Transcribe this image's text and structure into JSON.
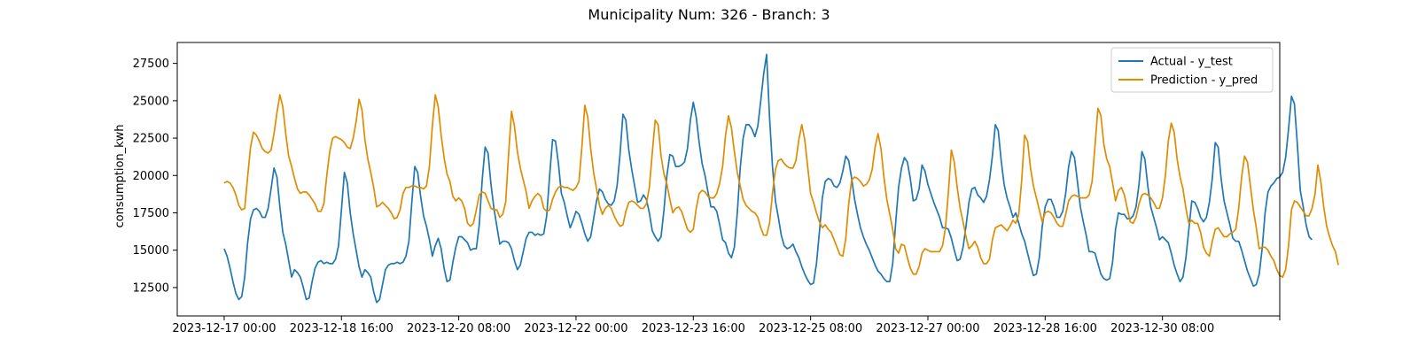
{
  "chart_data": {
    "type": "line",
    "title": "Municipality Num: 326 - Branch: 3",
    "xlabel": "",
    "ylabel": "consumption_kwh",
    "x_start": "2023-12-17 00:00",
    "x_step_hours": 1,
    "xlim_hours": [
      -16,
      360
    ],
    "ylim": [
      10600,
      28900
    ],
    "grid": false,
    "legend_position": "top-right",
    "x_ticks": [
      {
        "label": "2023-12-17 00:00",
        "hours": 0
      },
      {
        "label": "2023-12-18 16:00",
        "hours": 40
      },
      {
        "label": "2023-12-20 08:00",
        "hours": 80
      },
      {
        "label": "2023-12-22 00:00",
        "hours": 120
      },
      {
        "label": "2023-12-23 16:00",
        "hours": 160
      },
      {
        "label": "2023-12-25 08:00",
        "hours": 200
      },
      {
        "label": "2023-12-27 00:00",
        "hours": 240
      },
      {
        "label": "2023-12-28 16:00",
        "hours": 280
      },
      {
        "label": "2023-12-30 08:00",
        "hours": 320
      },
      {
        "label": "",
        "hours": 360
      }
    ],
    "y_ticks": [
      12500,
      15000,
      17500,
      20000,
      22500,
      25000,
      27500
    ],
    "series": [
      {
        "name": "Actual - y_test",
        "color": "#1f77b4",
        "values": [
          15100,
          14600,
          13800,
          12900,
          12100,
          11700,
          11900,
          13200,
          15500,
          17100,
          17700,
          17800,
          17600,
          17200,
          17200,
          17800,
          19100,
          20500,
          19900,
          17900,
          16200,
          15400,
          14300,
          13200,
          13700,
          13500,
          13200,
          12500,
          11700,
          11800,
          12900,
          13800,
          14200,
          14300,
          14100,
          14200,
          14100,
          14100,
          14400,
          15300,
          17700,
          20200,
          19500,
          17500,
          16100,
          15000,
          13900,
          13200,
          13700,
          13500,
          13200,
          12200,
          11500,
          11700,
          12700,
          13700,
          14000,
          14100,
          14100,
          14200,
          14100,
          14200,
          14600,
          15600,
          18200,
          20600,
          20200,
          18600,
          17300,
          16600,
          15700,
          14600,
          15300,
          15800,
          15100,
          13800,
          12900,
          13000,
          14200,
          15200,
          15900,
          15900,
          15700,
          15500,
          15000,
          15100,
          15100,
          16700,
          19700,
          21900,
          21500,
          19400,
          17800,
          16600,
          15400,
          15600,
          15600,
          15500,
          15100,
          14300,
          13700,
          14000,
          14900,
          15800,
          16200,
          16200,
          16000,
          16100,
          16000,
          16100,
          17300,
          20000,
          22400,
          22300,
          20800,
          18800,
          18200,
          17300,
          16500,
          17000,
          17600,
          17400,
          16800,
          16100,
          15600,
          15900,
          17100,
          18300,
          19100,
          18900,
          18400,
          18100,
          18000,
          18300,
          19300,
          21400,
          24100,
          23700,
          21700,
          20400,
          19300,
          18200,
          18300,
          18700,
          18400,
          17500,
          16300,
          15900,
          15600,
          15900,
          17700,
          20000,
          21400,
          21300,
          20600,
          20600,
          20700,
          20900,
          21800,
          23700,
          24900,
          23900,
          22200,
          20800,
          20000,
          18900,
          17900,
          17900,
          17600,
          16700,
          15700,
          15500,
          14800,
          14500,
          15200,
          17500,
          20500,
          22500,
          23400,
          23400,
          23100,
          22600,
          23300,
          25000,
          26800,
          28100,
          23900,
          20600,
          18300,
          17200,
          16000,
          15300,
          15100,
          15200,
          15400,
          14900,
          14500,
          13900,
          13400,
          13000,
          12700,
          12800,
          14100,
          16200,
          18500,
          19600,
          19800,
          19700,
          19300,
          19200,
          19500,
          20300,
          21300,
          21000,
          19800,
          18400,
          17400,
          16500,
          15900,
          15400,
          15000,
          14500,
          14000,
          13600,
          13400,
          13100,
          12900,
          12900,
          14100,
          16800,
          19200,
          20500,
          21200,
          20900,
          19800,
          18300,
          18400,
          19100,
          20700,
          20300,
          19400,
          18800,
          18200,
          17700,
          17200,
          16500,
          16500,
          16400,
          15800,
          15000,
          14300,
          14400,
          15200,
          16600,
          18200,
          19100,
          19200,
          18700,
          18500,
          18200,
          18600,
          19700,
          21300,
          23400,
          23000,
          21000,
          19400,
          18500,
          17900,
          17200,
          17500,
          16800,
          16100,
          15600,
          14800,
          14000,
          13300,
          13400,
          14500,
          16600,
          17900,
          18400,
          18400,
          17900,
          17200,
          17200,
          17600,
          18800,
          20600,
          21600,
          21200,
          19600,
          17900,
          16900,
          16000,
          14900,
          14900,
          14800,
          14100,
          13400,
          13100,
          13000,
          13100,
          14200,
          16400,
          17500,
          17400,
          17400,
          17100,
          17100,
          17300,
          17900,
          19400,
          21600,
          21100,
          19300,
          17900,
          17200,
          16500,
          15700,
          15900,
          15700,
          15500,
          14800,
          14000,
          13400,
          12900,
          13200,
          14500,
          16400,
          18300,
          18200,
          17800,
          17200,
          16900,
          17200,
          18200,
          19800,
          22200,
          21900,
          19800,
          18300,
          17500,
          16700,
          15800,
          15600,
          15600,
          15000,
          14300,
          13600,
          13100,
          12600,
          12700,
          13400,
          15100,
          17500,
          18900,
          19300,
          19500,
          19800,
          19900,
          20200,
          21200,
          23100,
          25300,
          24800,
          22100,
          19000,
          17900,
          16700,
          15900,
          15700
        ]
      },
      {
        "name": "Prediction - y_pred",
        "color": "#e08c00",
        "values": [
          19500,
          19600,
          19500,
          19200,
          18700,
          18000,
          17700,
          17800,
          19900,
          21900,
          22900,
          22700,
          22300,
          21800,
          21600,
          21500,
          21700,
          22800,
          24200,
          25400,
          24600,
          22800,
          21300,
          20600,
          19800,
          19100,
          18800,
          18900,
          18900,
          18700,
          18400,
          18100,
          17600,
          17600,
          18100,
          20000,
          21600,
          22500,
          22600,
          22500,
          22400,
          22200,
          21900,
          21800,
          22500,
          23600,
          25100,
          24400,
          22400,
          21100,
          20200,
          19200,
          17900,
          18000,
          18200,
          18000,
          17800,
          17500,
          17100,
          17200,
          17700,
          18800,
          19200,
          19200,
          19300,
          19300,
          19200,
          19200,
          19100,
          19300,
          20600,
          23300,
          25400,
          24600,
          22700,
          21200,
          20100,
          19600,
          18600,
          18300,
          18500,
          18300,
          17800,
          16800,
          16600,
          16800,
          17700,
          18700,
          18900,
          18800,
          18300,
          17800,
          17700,
          17700,
          17200,
          17400,
          18200,
          21400,
          24300,
          23300,
          21600,
          20500,
          19700,
          18900,
          17800,
          18300,
          18600,
          18800,
          18600,
          17800,
          17600,
          17700,
          18400,
          18900,
          19200,
          19300,
          19200,
          19200,
          19100,
          19000,
          19200,
          19600,
          21900,
          24700,
          23900,
          21800,
          20200,
          19100,
          18000,
          17400,
          17800,
          18000,
          17800,
          17300,
          16900,
          16600,
          16700,
          17600,
          18200,
          18300,
          18200,
          18000,
          17800,
          17800,
          18100,
          19200,
          21500,
          23700,
          23400,
          21300,
          20100,
          19400,
          18400,
          17500,
          17800,
          17900,
          17600,
          17000,
          16400,
          16200,
          16400,
          17800,
          18800,
          19000,
          18900,
          18600,
          18500,
          18500,
          18800,
          19500,
          20600,
          22700,
          24000,
          23200,
          21600,
          20200,
          19300,
          18400,
          18000,
          17800,
          17600,
          17500,
          17200,
          16500,
          16000,
          16000,
          16800,
          18800,
          20400,
          21000,
          21100,
          20800,
          20600,
          20500,
          20500,
          21000,
          22400,
          23400,
          22400,
          20600,
          18800,
          18200,
          17500,
          16900,
          16500,
          16700,
          16400,
          16200,
          15700,
          15200,
          14700,
          14600,
          15800,
          18100,
          19700,
          19900,
          19800,
          19600,
          19300,
          19400,
          19700,
          20400,
          21900,
          22800,
          21800,
          19900,
          18400,
          17400,
          16400,
          15100,
          14800,
          15400,
          15300,
          14500,
          13800,
          13400,
          13400,
          13900,
          14800,
          15100,
          15000,
          14900,
          14900,
          14900,
          14900,
          15300,
          16500,
          18900,
          21700,
          20900,
          19200,
          17800,
          16900,
          15900,
          15100,
          15300,
          15600,
          15200,
          14500,
          14100,
          14100,
          14400,
          15700,
          16500,
          16600,
          16700,
          16500,
          16300,
          16600,
          17000,
          16800,
          17400,
          19700,
          22700,
          22300,
          20500,
          19300,
          18500,
          17700,
          16900,
          17500,
          17600,
          17500,
          17200,
          16800,
          16600,
          16600,
          17400,
          18300,
          18600,
          18700,
          18600,
          18500,
          18500,
          18500,
          18700,
          19600,
          22000,
          24500,
          24000,
          22100,
          21100,
          20600,
          19500,
          18300,
          19000,
          19200,
          18700,
          17800,
          16900,
          16800,
          17200,
          18100,
          18700,
          18800,
          18700,
          18500,
          18200,
          17800,
          17800,
          18500,
          20000,
          22300,
          23500,
          22900,
          21100,
          19900,
          19100,
          17800,
          16800,
          17000,
          16800,
          16800,
          16200,
          15200,
          14800,
          14600,
          15600,
          16400,
          16500,
          16200,
          15900,
          15900,
          16100,
          16200,
          16400,
          17800,
          19900,
          21300,
          20900,
          19300,
          17700,
          16500,
          15100,
          15200,
          15200,
          15000,
          14600,
          14300,
          13700,
          13300,
          13200,
          13700,
          15300,
          17700,
          18300,
          18200,
          17900,
          17600,
          17300,
          17300,
          17800,
          18700,
          20700,
          19600,
          17900,
          16600,
          15900,
          15300,
          14900,
          14000
        ]
      }
    ]
  }
}
